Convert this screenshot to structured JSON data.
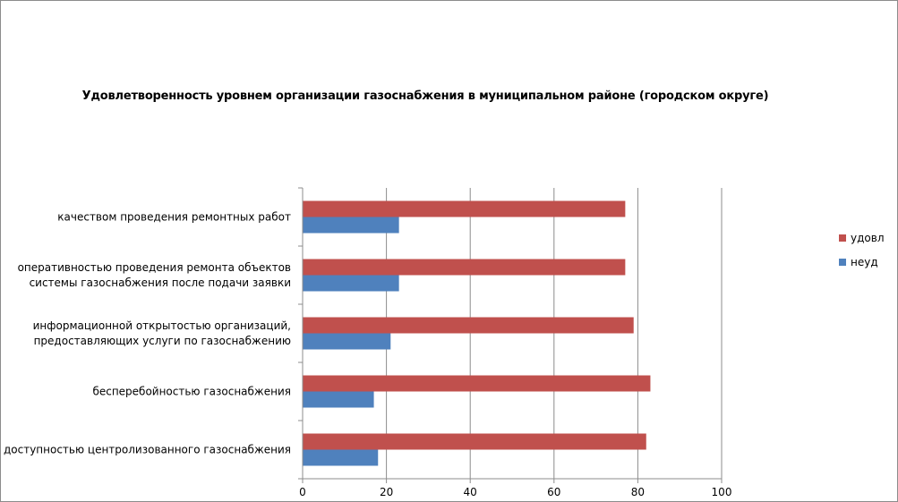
{
  "chart_data": {
    "type": "bar",
    "orientation": "horizontal",
    "title": "Удовлетворенность уровнем организации газоснабжения в муниципальном районе (городском округе)",
    "categories": [
      [
        "качеством проведения  ремонтных работ"
      ],
      [
        "оперативностью проведения ремонта объектов",
        "системы газоснабжения после подачи заявки"
      ],
      [
        "информационной открытостью организаций,",
        "предоставляющих услуги по газоснабжению"
      ],
      [
        "бесперебойностью  газоснабжения"
      ],
      [
        "доступностью центролизованного газоснабжения"
      ]
    ],
    "series": [
      {
        "name": "удовл",
        "color": "#c0504d",
        "values": [
          77,
          77,
          79,
          83,
          82
        ]
      },
      {
        "name": "неуд",
        "color": "#4f81bd",
        "values": [
          23,
          23,
          21,
          17,
          18
        ]
      }
    ],
    "xlim": [
      0,
      100
    ],
    "xticks": [
      "0",
      "20",
      "40",
      "60",
      "80",
      "100"
    ],
    "grid": true,
    "legend": "right"
  }
}
